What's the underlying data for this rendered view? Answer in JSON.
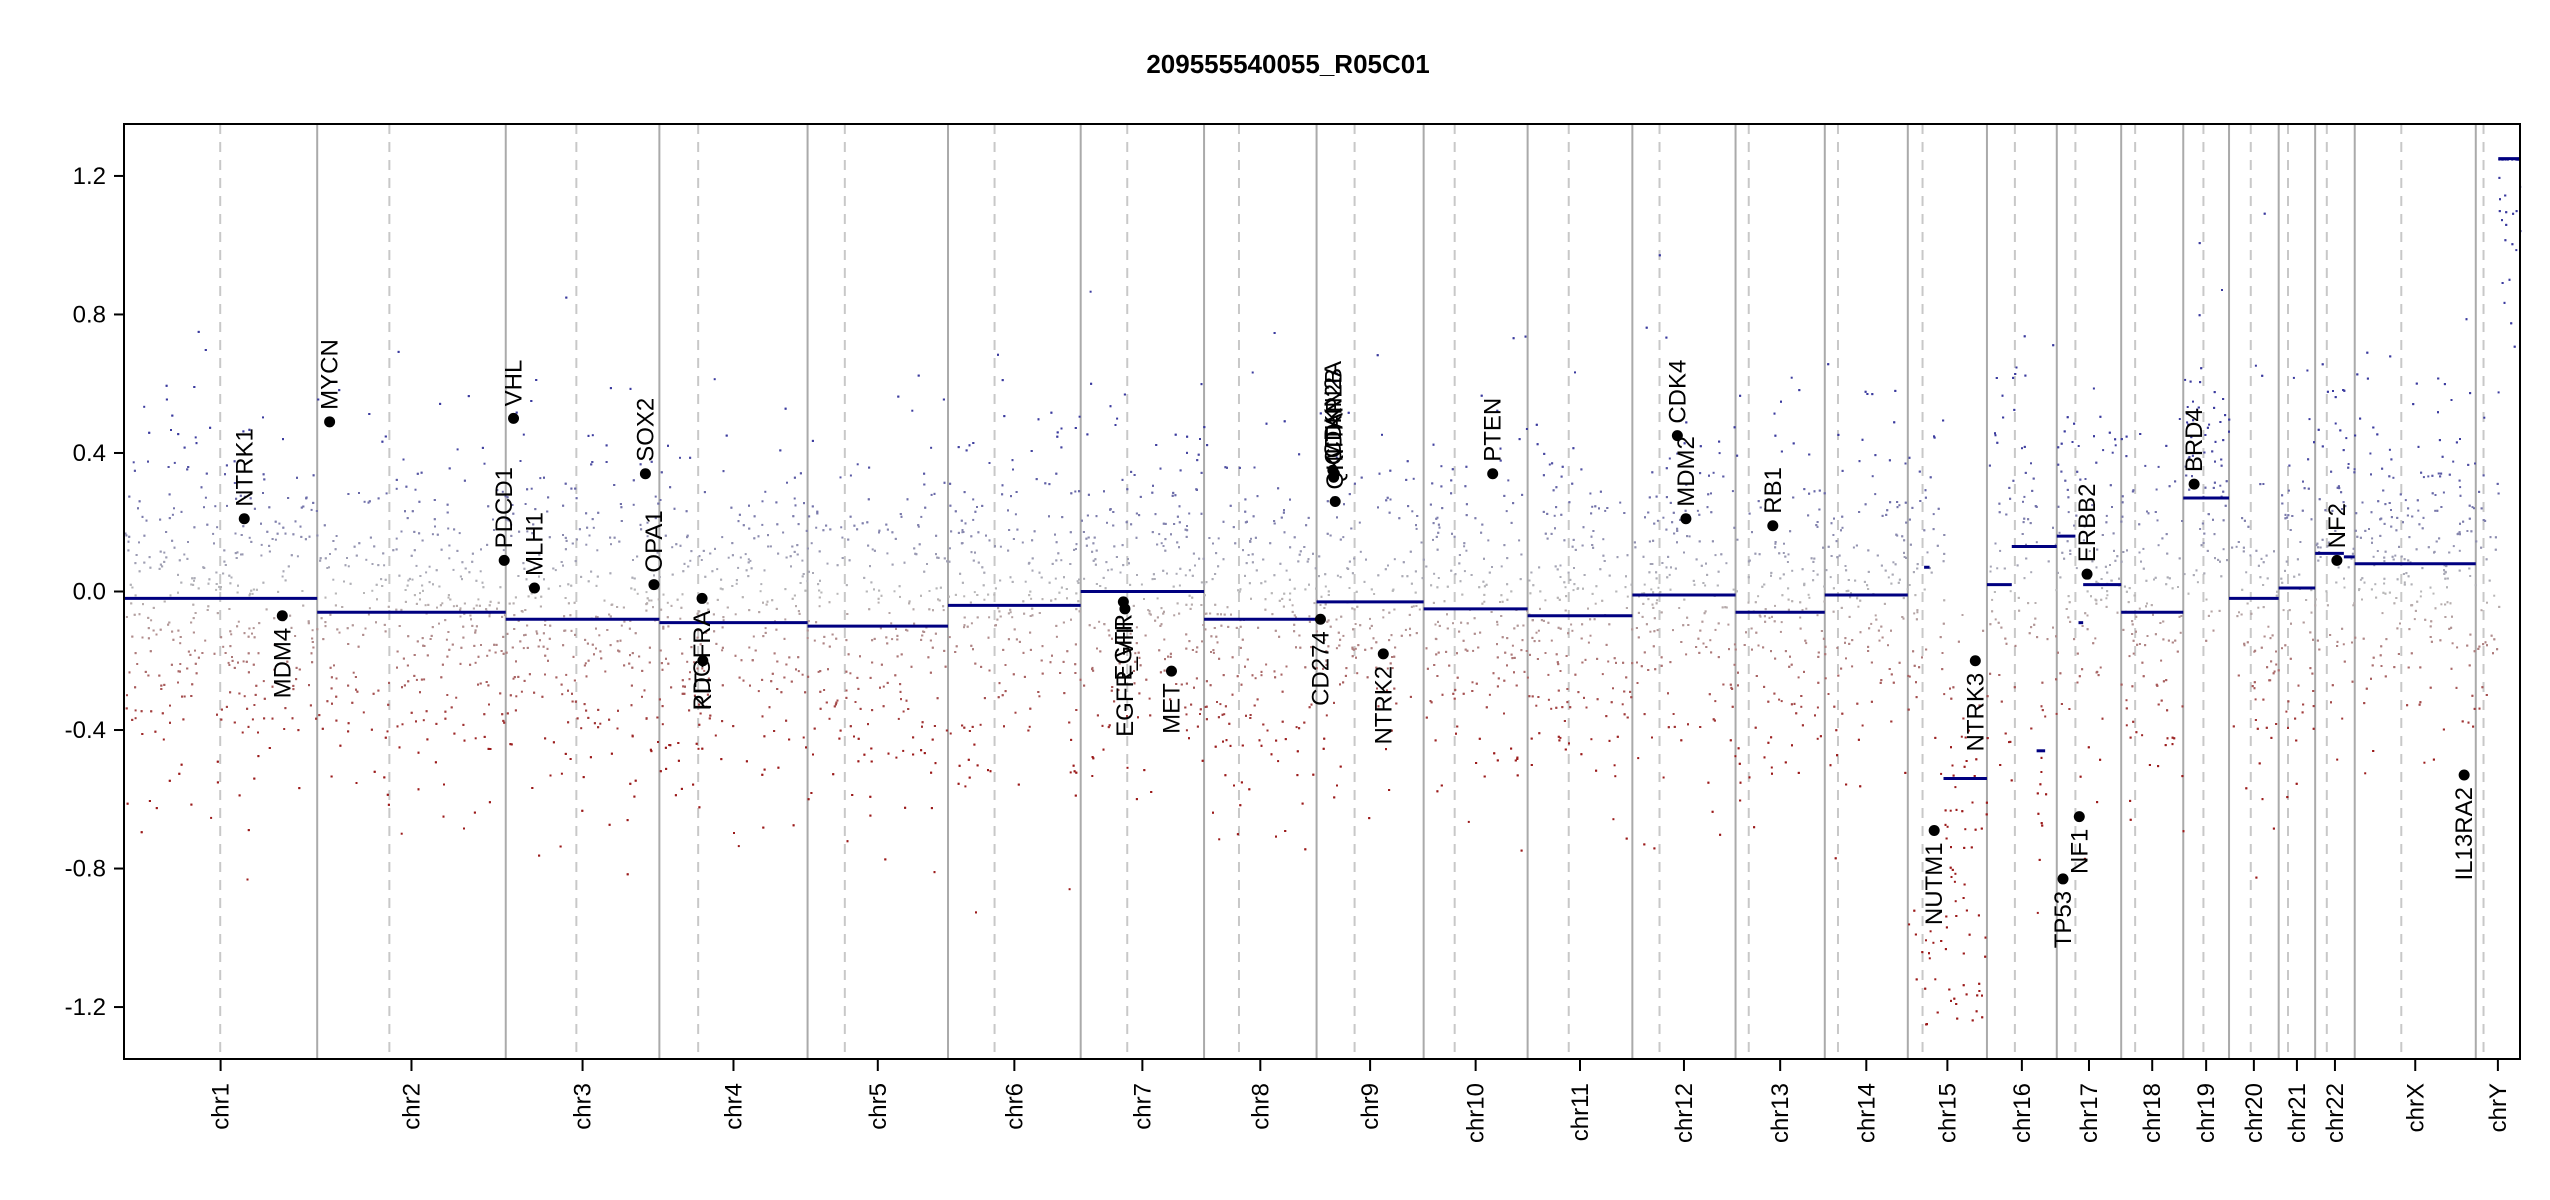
{
  "chart_data": {
    "type": "scatter",
    "title": "209555540055_R05C01",
    "ylim": [
      -1.35,
      1.35
    ],
    "y_ticks": [
      "1.2",
      "0.8",
      "0.4",
      "0.0",
      "-0.4",
      "-0.8",
      "-1.2"
    ],
    "y_tick_values": [
      1.2,
      0.8,
      0.4,
      0.0,
      -0.4,
      -0.8,
      -1.2
    ],
    "grid": "chromosome separators (solid) and centromeres (dashed)",
    "colors": {
      "gain": "#3a3a9e",
      "loss": "#9b1a1a",
      "neutral": "#b8b8b8",
      "segment": "#000080",
      "gene": "#000000",
      "axis": "#000000",
      "separator": "#aaaaaa"
    },
    "chromosomes": [
      {
        "label": "chr1",
        "start": 0,
        "end": 249,
        "centro": 124
      },
      {
        "label": "chr2",
        "start": 249,
        "end": 492,
        "centro": 93
      },
      {
        "label": "chr3",
        "start": 492,
        "end": 690,
        "centro": 91
      },
      {
        "label": "chr4",
        "start": 690,
        "end": 881,
        "centro": 50
      },
      {
        "label": "chr5",
        "start": 881,
        "end": 1062,
        "centro": 48
      },
      {
        "label": "chr6",
        "start": 1062,
        "end": 1233,
        "centro": 60
      },
      {
        "label": "chr7",
        "start": 1233,
        "end": 1392,
        "centro": 60
      },
      {
        "label": "chr8",
        "start": 1392,
        "end": 1537,
        "centro": 45
      },
      {
        "label": "chr9",
        "start": 1537,
        "end": 1675,
        "centro": 49
      },
      {
        "label": "chr10",
        "start": 1675,
        "end": 1809,
        "centro": 40
      },
      {
        "label": "chr11",
        "start": 1809,
        "end": 1944,
        "centro": 53
      },
      {
        "label": "chr12",
        "start": 1944,
        "end": 2077,
        "centro": 35
      },
      {
        "label": "chr13",
        "start": 2077,
        "end": 2192,
        "centro": 17
      },
      {
        "label": "chr14",
        "start": 2192,
        "end": 2299,
        "centro": 17
      },
      {
        "label": "chr15",
        "start": 2299,
        "end": 2401,
        "centro": 19
      },
      {
        "label": "chr16",
        "start": 2401,
        "end": 2491,
        "centro": 36
      },
      {
        "label": "chr17",
        "start": 2491,
        "end": 2574,
        "centro": 24
      },
      {
        "label": "chr18",
        "start": 2574,
        "end": 2654,
        "centro": 18
      },
      {
        "label": "chr19",
        "start": 2654,
        "end": 2713,
        "centro": 26
      },
      {
        "label": "chr20",
        "start": 2713,
        "end": 2777,
        "centro": 28
      },
      {
        "label": "chr21",
        "start": 2777,
        "end": 2824,
        "centro": 12
      },
      {
        "label": "chr22",
        "start": 2824,
        "end": 2875,
        "centro": 15
      },
      {
        "label": "chrX",
        "start": 2875,
        "end": 3031,
        "centro": 60
      },
      {
        "label": "chrY",
        "start": 3031,
        "end": 3088,
        "centro": 10
      }
    ],
    "segments": [
      {
        "x0": 0,
        "x1": 249,
        "y": -0.02
      },
      {
        "x0": 249,
        "x1": 492,
        "y": -0.06
      },
      {
        "x0": 492,
        "x1": 690,
        "y": -0.08
      },
      {
        "x0": 690,
        "x1": 881,
        "y": -0.09
      },
      {
        "x0": 881,
        "x1": 1062,
        "y": -0.1
      },
      {
        "x0": 1062,
        "x1": 1233,
        "y": -0.04
      },
      {
        "x0": 1233,
        "x1": 1392,
        "y": 0.0
      },
      {
        "x0": 1392,
        "x1": 1537,
        "y": -0.08
      },
      {
        "x0": 1537,
        "x1": 1675,
        "y": -0.03
      },
      {
        "x0": 1675,
        "x1": 1809,
        "y": -0.05
      },
      {
        "x0": 1809,
        "x1": 1944,
        "y": -0.07
      },
      {
        "x0": 1944,
        "x1": 2077,
        "y": -0.01
      },
      {
        "x0": 2077,
        "x1": 2192,
        "y": -0.06
      },
      {
        "x0": 2192,
        "x1": 2299,
        "y": -0.01
      },
      {
        "x0": 2320,
        "x1": 2327,
        "y": 0.07
      },
      {
        "x0": 2345,
        "x1": 2401,
        "y": -0.54
      },
      {
        "x0": 2401,
        "x1": 2433,
        "y": 0.02
      },
      {
        "x0": 2433,
        "x1": 2491,
        "y": 0.13
      },
      {
        "x0": 2465,
        "x1": 2476,
        "y": -0.46
      },
      {
        "x0": 2491,
        "x1": 2515,
        "y": 0.16
      },
      {
        "x0": 2519,
        "x1": 2525,
        "y": -0.09
      },
      {
        "x0": 2525,
        "x1": 2574,
        "y": 0.02
      },
      {
        "x0": 2574,
        "x1": 2654,
        "y": -0.06
      },
      {
        "x0": 2654,
        "x1": 2713,
        "y": 0.27
      },
      {
        "x0": 2713,
        "x1": 2777,
        "y": -0.02
      },
      {
        "x0": 2777,
        "x1": 2824,
        "y": 0.01
      },
      {
        "x0": 2824,
        "x1": 2861,
        "y": 0.11
      },
      {
        "x0": 2861,
        "x1": 2875,
        "y": 0.1
      },
      {
        "x0": 2875,
        "x1": 3031,
        "y": 0.08
      },
      {
        "x0": 3060,
        "x1": 3088,
        "y": 1.25
      }
    ],
    "genes": [
      {
        "name": "NTRK1",
        "x": 155,
        "y": 0.21,
        "side": "up"
      },
      {
        "name": "MDM4",
        "x": 204,
        "y": -0.07,
        "side": "down"
      },
      {
        "name": "MYCN",
        "x": 265,
        "y": 0.49,
        "side": "up"
      },
      {
        "name": "PDCD1",
        "x": 490,
        "y": 0.09,
        "side": "up"
      },
      {
        "name": "VHL",
        "x": 502,
        "y": 0.5,
        "side": "up"
      },
      {
        "name": "MLH1",
        "x": 529,
        "y": 0.01,
        "side": "up"
      },
      {
        "name": "SOX2",
        "x": 672,
        "y": 0.34,
        "side": "up"
      },
      {
        "name": "OPA1",
        "x": 683,
        "y": 0.02,
        "side": "up"
      },
      {
        "name": "PDGFRA",
        "x": 745,
        "y": -0.02,
        "side": "down"
      },
      {
        "name": "KIT",
        "x": 746,
        "y": -0.2,
        "side": "down"
      },
      {
        "name": "EGFR",
        "x": 1288,
        "y": -0.03,
        "side": "down"
      },
      {
        "name": "EGFR_VIII",
        "x": 1290,
        "y": -0.05,
        "side": "down"
      },
      {
        "name": "MET",
        "x": 1350,
        "y": -0.23,
        "side": "down"
      },
      {
        "name": "CD274",
        "x": 1542,
        "y": -0.08,
        "side": "down"
      },
      {
        "name": "CDKN2A",
        "x": 1558,
        "y": 0.35,
        "side": "up"
      },
      {
        "name": "CDKN2B",
        "x": 1559,
        "y": 0.33,
        "side": "up"
      },
      {
        "name": "MTAP",
        "x": 1560,
        "y": 0.34,
        "side": "up"
      },
      {
        "name": "QKI",
        "x": 1561,
        "y": 0.26,
        "side": "up"
      },
      {
        "name": "NTRK2",
        "x": 1623,
        "y": -0.18,
        "side": "down"
      },
      {
        "name": "PTEN",
        "x": 1764,
        "y": 0.34,
        "side": "up"
      },
      {
        "name": "MDM2",
        "x": 2013,
        "y": 0.21,
        "side": "up"
      },
      {
        "name": "CDK4",
        "x": 2002,
        "y": 0.45,
        "side": "up"
      },
      {
        "name": "RB1",
        "x": 2125,
        "y": 0.19,
        "side": "up"
      },
      {
        "name": "NUTM1",
        "x": 2333,
        "y": -0.69,
        "side": "down"
      },
      {
        "name": "NTRK3",
        "x": 2386,
        "y": -0.2,
        "side": "down"
      },
      {
        "name": "TP53",
        "x": 2499,
        "y": -0.83,
        "side": "down"
      },
      {
        "name": "NF1",
        "x": 2520,
        "y": -0.65,
        "side": "down"
      },
      {
        "name": "ERBB2",
        "x": 2530,
        "y": 0.05,
        "side": "up"
      },
      {
        "name": "BRD4",
        "x": 2668,
        "y": 0.31,
        "side": "up"
      },
      {
        "name": "NF2",
        "x": 2852,
        "y": 0.09,
        "side": "up"
      },
      {
        "name": "IL13RA2",
        "x": 3016,
        "y": -0.53,
        "side": "down"
      }
    ]
  }
}
